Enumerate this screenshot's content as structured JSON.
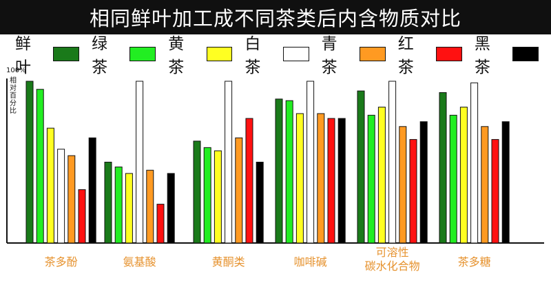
{
  "title": "相同鲜叶加工成不同茶类后内含物质对比",
  "legend": [
    {
      "name": "鲜叶",
      "color": "#1a7a1a"
    },
    {
      "name": "绿茶",
      "color": "#22ee22"
    },
    {
      "name": "黄茶",
      "color": "#ffff22"
    },
    {
      "name": "白茶",
      "color": "#ffffff"
    },
    {
      "name": "青茶",
      "color": "#ff9a22"
    },
    {
      "name": "红茶",
      "color": "#ff1111"
    },
    {
      "name": "黑茶",
      "color": "#000000"
    }
  ],
  "y_axis": {
    "top_label": "100%",
    "title": "相对百分比"
  },
  "chart_data": {
    "type": "bar",
    "title": "相同鲜叶加工成不同茶类后内含物质对比",
    "ylabel": "相对百分比",
    "ylim": [
      0,
      100
    ],
    "grid": false,
    "legend_position": "top",
    "categories": [
      "茶多酚",
      "氨基酸",
      "黄酮类",
      "咖啡碱",
      "可溶性\n碳水化合物",
      "茶多糖"
    ],
    "series": [
      {
        "name": "鲜叶",
        "color": "#1a7a1a",
        "values": [
          100,
          50,
          63,
          89,
          94,
          93
        ]
      },
      {
        "name": "绿茶",
        "color": "#22ee22",
        "values": [
          95,
          47,
          59,
          88,
          79,
          79
        ]
      },
      {
        "name": "黄茶",
        "color": "#ffff22",
        "values": [
          71,
          43,
          57,
          80,
          84,
          84
        ]
      },
      {
        "name": "白茶",
        "color": "#ffffff",
        "values": [
          58,
          100,
          100,
          100,
          100,
          99
        ]
      },
      {
        "name": "青茶",
        "color": "#ff9a22",
        "values": [
          54,
          45,
          65,
          80,
          72,
          72
        ]
      },
      {
        "name": "红茶",
        "color": "#ff1111",
        "values": [
          33,
          24,
          77,
          77,
          64,
          64
        ]
      },
      {
        "name": "黑茶",
        "color": "#000000",
        "values": [
          65,
          43,
          50,
          77,
          75,
          75
        ]
      }
    ]
  }
}
